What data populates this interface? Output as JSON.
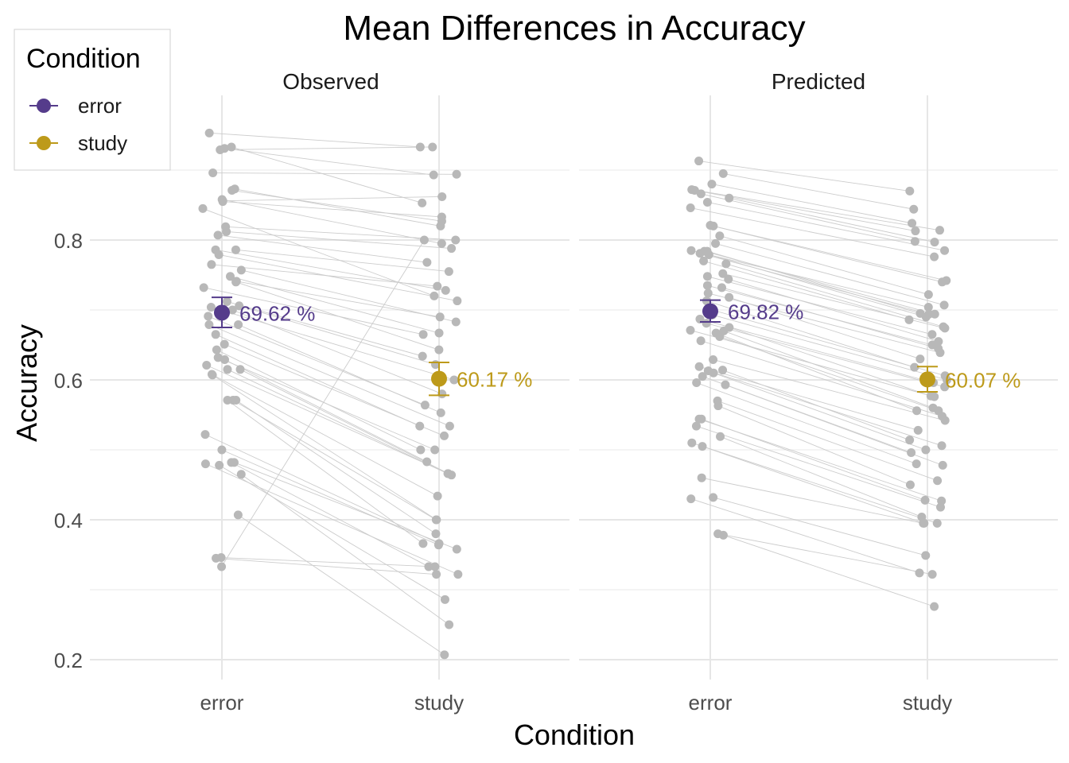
{
  "chart_data": {
    "type": "scatter",
    "title": "Mean Differences in Accuracy",
    "xlabel": "Condition",
    "ylabel": "Accuracy",
    "ylim": [
      0.18,
      0.97
    ],
    "yticks": [
      "0.2",
      "0.4",
      "0.6",
      "0.8"
    ],
    "categories": [
      "error",
      "study"
    ],
    "grid": true,
    "legend": {
      "title": "Condition",
      "position": "top-left",
      "entries": [
        {
          "label": "error",
          "color": "#553C8B"
        },
        {
          "label": "study",
          "color": "#BD9A1A"
        }
      ]
    },
    "point_color": "#B8B8B8",
    "line_color": "#CCCCCC",
    "panels": [
      {
        "name": "Observed",
        "means": [
          {
            "condition": "error",
            "value": 0.6962,
            "ci": [
              0.675,
              0.718
            ],
            "label": "69.62 %",
            "color": "#553C8B"
          },
          {
            "condition": "study",
            "value": 0.6017,
            "ci": [
              0.578,
              0.625
            ],
            "label": "60.17 %",
            "color": "#BD9A1A"
          }
        ],
        "pairs": [
          [
            0.953,
            0.933
          ],
          [
            0.933,
            0.853
          ],
          [
            0.931,
            0.893
          ],
          [
            0.929,
            0.933
          ],
          [
            0.896,
            0.894
          ],
          [
            0.873,
            0.82
          ],
          [
            0.871,
            0.827
          ],
          [
            0.858,
            0.795
          ],
          [
            0.856,
            0.862
          ],
          [
            0.855,
            0.833
          ],
          [
            0.845,
            0.72
          ],
          [
            0.819,
            0.8
          ],
          [
            0.812,
            0.788
          ],
          [
            0.807,
            0.768
          ],
          [
            0.786,
            0.755
          ],
          [
            0.786,
            0.728
          ],
          [
            0.779,
            0.713
          ],
          [
            0.765,
            0.734
          ],
          [
            0.757,
            0.683
          ],
          [
            0.748,
            0.667
          ],
          [
            0.741,
            0.69
          ],
          [
            0.74,
            0.643
          ],
          [
            0.732,
            0.665
          ],
          [
            0.712,
            0.634
          ],
          [
            0.706,
            0.622
          ],
          [
            0.704,
            0.6
          ],
          [
            0.7,
            0.58
          ],
          [
            0.691,
            0.564
          ],
          [
            0.679,
            0.553
          ],
          [
            0.679,
            0.534
          ],
          [
            0.665,
            0.534
          ],
          [
            0.651,
            0.52
          ],
          [
            0.643,
            0.5
          ],
          [
            0.632,
            0.5
          ],
          [
            0.629,
            0.483
          ],
          [
            0.621,
            0.466
          ],
          [
            0.615,
            0.466
          ],
          [
            0.615,
            0.464
          ],
          [
            0.608,
            0.434
          ],
          [
            0.607,
            0.4
          ],
          [
            0.571,
            0.4
          ],
          [
            0.571,
            0.38
          ],
          [
            0.571,
            0.366
          ],
          [
            0.522,
            0.366
          ],
          [
            0.5,
            0.364
          ],
          [
            0.482,
            0.358
          ],
          [
            0.482,
            0.333
          ],
          [
            0.48,
            0.322
          ],
          [
            0.478,
            0.286
          ],
          [
            0.465,
            0.25
          ],
          [
            0.407,
            0.207
          ],
          [
            0.346,
            0.333
          ],
          [
            0.345,
            0.322
          ],
          [
            0.333,
            0.8
          ]
        ]
      },
      {
        "name": "Predicted",
        "means": [
          {
            "condition": "error",
            "value": 0.6982,
            "ci": [
              0.683,
              0.714
            ],
            "label": "69.82 %",
            "color": "#553C8B"
          },
          {
            "condition": "study",
            "value": 0.6007,
            "ci": [
              0.583,
              0.619
            ],
            "label": "60.07 %",
            "color": "#BD9A1A"
          }
        ],
        "pairs": [
          [
            0.913,
            0.87
          ],
          [
            0.895,
            0.844
          ],
          [
            0.88,
            0.824
          ],
          [
            0.872,
            0.814
          ],
          [
            0.871,
            0.813
          ],
          [
            0.866,
            0.798
          ],
          [
            0.86,
            0.797
          ],
          [
            0.854,
            0.785
          ],
          [
            0.846,
            0.776
          ],
          [
            0.821,
            0.742
          ],
          [
            0.82,
            0.74
          ],
          [
            0.806,
            0.722
          ],
          [
            0.795,
            0.707
          ],
          [
            0.785,
            0.704
          ],
          [
            0.784,
            0.695
          ],
          [
            0.784,
            0.694
          ],
          [
            0.781,
            0.694
          ],
          [
            0.779,
            0.69
          ],
          [
            0.77,
            0.686
          ],
          [
            0.766,
            0.676
          ],
          [
            0.752,
            0.674
          ],
          [
            0.748,
            0.665
          ],
          [
            0.744,
            0.655
          ],
          [
            0.735,
            0.65
          ],
          [
            0.732,
            0.645
          ],
          [
            0.724,
            0.639
          ],
          [
            0.718,
            0.63
          ],
          [
            0.713,
            0.618
          ],
          [
            0.7,
            0.606
          ],
          [
            0.693,
            0.6
          ],
          [
            0.687,
            0.596
          ],
          [
            0.681,
            0.59
          ],
          [
            0.675,
            0.577
          ],
          [
            0.671,
            0.576
          ],
          [
            0.67,
            0.56
          ],
          [
            0.667,
            0.556
          ],
          [
            0.662,
            0.556
          ],
          [
            0.656,
            0.548
          ],
          [
            0.629,
            0.542
          ],
          [
            0.619,
            0.528
          ],
          [
            0.614,
            0.514
          ],
          [
            0.613,
            0.506
          ],
          [
            0.61,
            0.5
          ],
          [
            0.605,
            0.496
          ],
          [
            0.596,
            0.48
          ],
          [
            0.593,
            0.478
          ],
          [
            0.57,
            0.456
          ],
          [
            0.563,
            0.45
          ],
          [
            0.544,
            0.428
          ],
          [
            0.544,
            0.427
          ],
          [
            0.534,
            0.418
          ],
          [
            0.519,
            0.404
          ],
          [
            0.51,
            0.395
          ],
          [
            0.505,
            0.395
          ],
          [
            0.46,
            0.395
          ],
          [
            0.432,
            0.349
          ],
          [
            0.43,
            0.324
          ],
          [
            0.38,
            0.322
          ],
          [
            0.378,
            0.276
          ]
        ]
      }
    ]
  }
}
